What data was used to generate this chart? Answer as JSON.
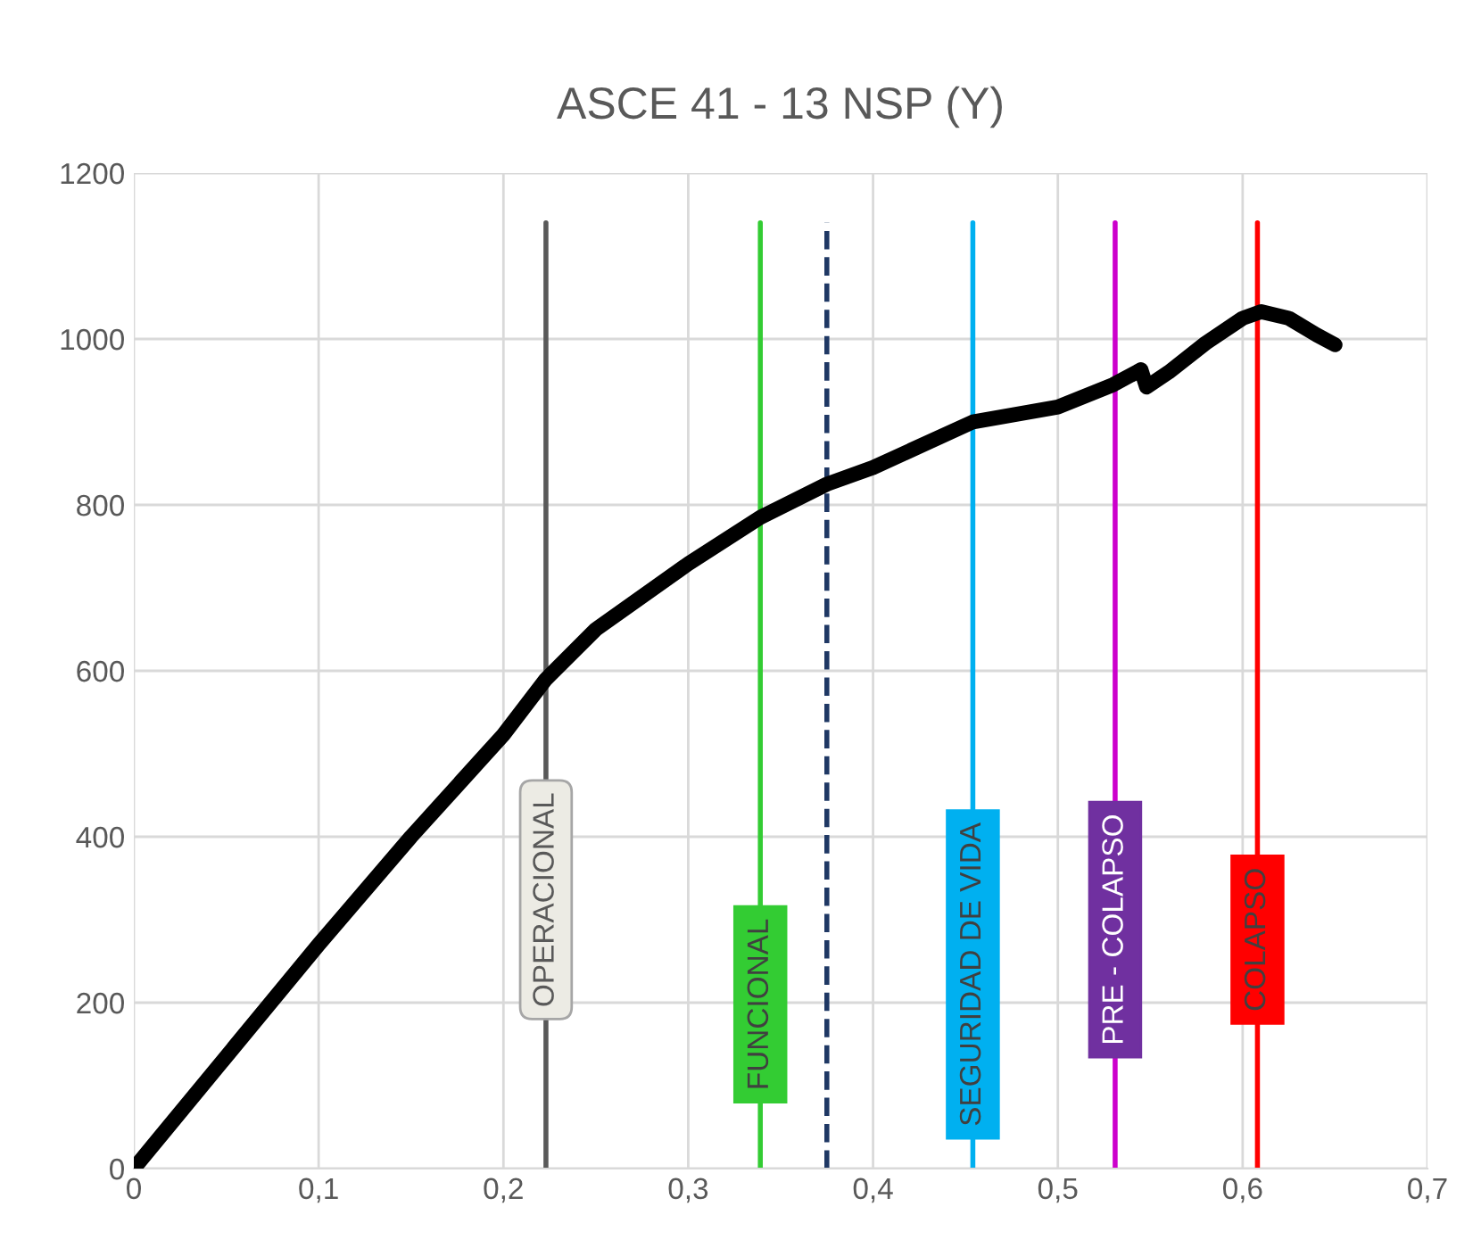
{
  "chart_data": {
    "type": "line",
    "title": "ASCE 41 - 13 NSP (Y)",
    "series": [
      {
        "color": "#000000",
        "x": [
          0,
          0.05,
          0.1,
          0.15,
          0.2,
          0.223,
          0.25,
          0.3,
          0.339,
          0.375,
          0.4,
          0.454,
          0.5,
          0.53,
          0.545,
          0.548,
          0.56,
          0.58,
          0.6,
          0.61,
          0.625,
          0.64,
          0.65
        ],
        "values": [
          0,
          135,
          270,
          400,
          523,
          590,
          650,
          729,
          785,
          825,
          845,
          900,
          918,
          945,
          963,
          942,
          960,
          995,
          1025,
          1033,
          1025,
          1005,
          993
        ]
      }
    ],
    "xlim": [
      0,
      0.7
    ],
    "ylim": [
      0,
      1200
    ],
    "xticks": [
      0,
      {
        "value": 0.1,
        "label": "0,1"
      },
      {
        "value": 0.2,
        "label": "0,2"
      },
      {
        "value": 0.3,
        "label": "0,3"
      },
      {
        "value": 0.4,
        "label": "0,4"
      },
      {
        "value": 0.5,
        "label": "0,5"
      },
      {
        "value": 0.6,
        "label": "0,6"
      },
      {
        "value": 0.7,
        "label": "0,7"
      }
    ],
    "yticks": [
      0,
      200,
      400,
      600,
      800,
      1000,
      1200
    ],
    "grid": true,
    "marker": "none",
    "line_style": "solid",
    "ref_lines": [
      {
        "axis": "x",
        "value": 0.223,
        "label": "OPERACIONAL",
        "color": "#595959"
      },
      {
        "axis": "x",
        "value": 0.339,
        "label": "FUNCIONAL",
        "color": "#33cc33"
      },
      {
        "axis": "x",
        "value": 0.375,
        "color": "#1f3864",
        "line_style": "dashed"
      },
      {
        "axis": "x",
        "value": 0.454,
        "label": "SEGURIDAD DE VIDA",
        "color": "#00b0f0"
      },
      {
        "axis": "x",
        "value": 0.531,
        "label": "PRE - COLAPSO",
        "color": "#cc00cc"
      },
      {
        "axis": "x",
        "value": 0.608,
        "label": "COLAPSO",
        "color": "#ff0000"
      }
    ]
  }
}
